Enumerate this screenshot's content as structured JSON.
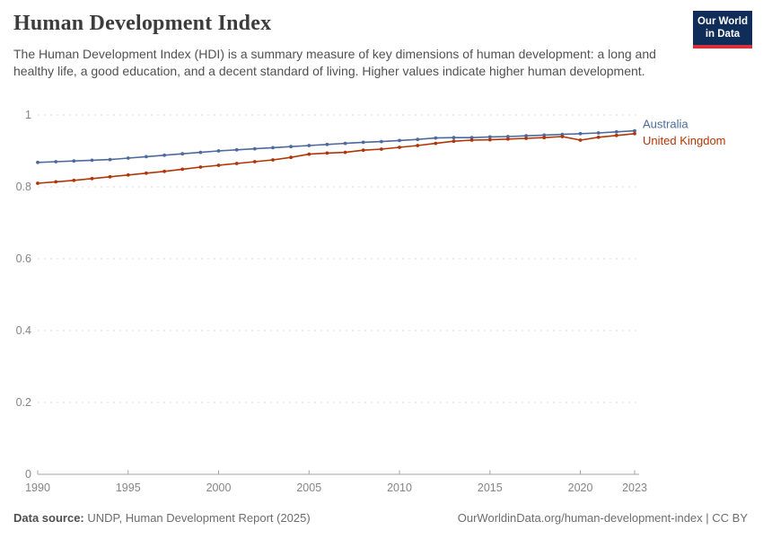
{
  "header": {
    "title": "Human Development Index",
    "subtitle": "The Human Development Index (HDI) is a summary measure of key dimensions of human development: a long and healthy life, a good education, and a decent standard of living. Higher values indicate higher human development.",
    "logo": {
      "line1": "Our World",
      "line2": "in Data",
      "bg_color": "#102d59",
      "accent_color": "#d5313b"
    }
  },
  "chart_data": {
    "type": "line",
    "title": "Human Development Index",
    "xlabel": "",
    "ylabel": "",
    "ylim": [
      0,
      1
    ],
    "yticks": [
      0,
      0.2,
      0.4,
      0.6,
      0.8,
      1
    ],
    "xticks": [
      1990,
      1995,
      2000,
      2005,
      2010,
      2015,
      2020,
      2023
    ],
    "grid": "horizontal-dashed",
    "legend_position": "right-of-line-ends",
    "x": [
      1990,
      1991,
      1992,
      1993,
      1994,
      1995,
      1996,
      1997,
      1998,
      1999,
      2000,
      2001,
      2002,
      2003,
      2004,
      2005,
      2006,
      2007,
      2008,
      2009,
      2010,
      2011,
      2012,
      2013,
      2014,
      2015,
      2016,
      2017,
      2018,
      2019,
      2020,
      2021,
      2022,
      2023
    ],
    "series": [
      {
        "name": "Australia",
        "color": "#4C6A9C",
        "label_dy": -3,
        "values": [
          0.868,
          0.87,
          0.872,
          0.874,
          0.876,
          0.88,
          0.884,
          0.888,
          0.892,
          0.896,
          0.9,
          0.903,
          0.906,
          0.909,
          0.912,
          0.915,
          0.918,
          0.921,
          0.924,
          0.926,
          0.929,
          0.932,
          0.936,
          0.937,
          0.937,
          0.939,
          0.94,
          0.942,
          0.944,
          0.946,
          0.948,
          0.95,
          0.953,
          0.956
        ]
      },
      {
        "name": "United Kingdom",
        "color": "#B13507",
        "label_dy": 12,
        "values": [
          0.81,
          0.814,
          0.818,
          0.823,
          0.828,
          0.833,
          0.838,
          0.843,
          0.849,
          0.855,
          0.86,
          0.865,
          0.87,
          0.875,
          0.882,
          0.891,
          0.894,
          0.896,
          0.902,
          0.905,
          0.91,
          0.915,
          0.921,
          0.927,
          0.93,
          0.931,
          0.933,
          0.935,
          0.937,
          0.94,
          0.93,
          0.938,
          0.943,
          0.948
        ]
      }
    ]
  },
  "footer": {
    "source_label": "Data source:",
    "source_value": "UNDP, Human Development Report (2025)",
    "attribution": "OurWorldinData.org/human-development-index | CC BY"
  }
}
